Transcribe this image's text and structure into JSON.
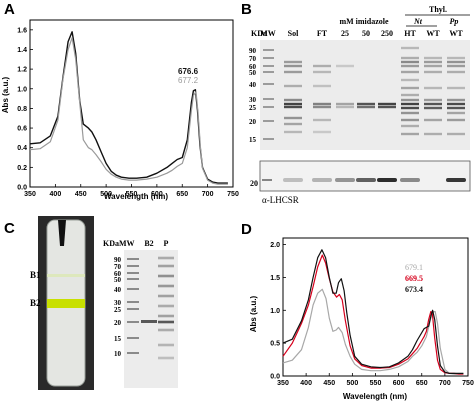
{
  "panels": {
    "A": {
      "label": "A",
      "ylabel": "Abs (a.u.)",
      "xlabel": "Wavelength (nm)",
      "xticks": [
        "350",
        "400",
        "450",
        "500",
        "550",
        "600",
        "650",
        "700",
        "750"
      ],
      "yticks": [
        "0.0",
        "0.2",
        "0.4",
        "0.6",
        "0.8",
        "1.0",
        "1.2",
        "1.4",
        "1.6"
      ],
      "legend": [
        {
          "text": "676.6",
          "color": "#111111"
        },
        {
          "text": "677.2",
          "color": "#9a9a9a"
        }
      ]
    },
    "B": {
      "label": "B",
      "kda": "KDa",
      "header_lanes": [
        "MW",
        "Sol",
        "FT",
        "25",
        "50",
        "250",
        "HT",
        "WT",
        "WT"
      ],
      "imidazole_label": "mM imidazole",
      "thyl_label": "Thyl.",
      "nt_label": "Nt",
      "pp_label": "Pp",
      "markers": [
        "90",
        "70",
        "60",
        "50",
        "40",
        "30",
        "25",
        "20",
        "15"
      ],
      "blot_marker": "20",
      "blot_label": "α-LHCSR"
    },
    "C": {
      "label": "C",
      "band_labels": [
        "B1",
        "B2"
      ],
      "kdamw": "KDaMW",
      "lanes": [
        "B2",
        "P"
      ],
      "markers": [
        "90",
        "70",
        "60",
        "50",
        "40",
        "30",
        "25",
        "20",
        "15",
        "10"
      ]
    },
    "D": {
      "label": "D",
      "ylabel": "Abs (a.u.)",
      "xlabel": "Wavelength (nm)",
      "xticks": [
        "350",
        "400",
        "450",
        "500",
        "550",
        "600",
        "650",
        "700",
        "750"
      ],
      "yticks": [
        "0.0",
        "0.5",
        "1.0",
        "1.5",
        "2.0"
      ],
      "legend": [
        {
          "text": "679.1",
          "color": "#a8a8a8"
        },
        {
          "text": "669.5",
          "color": "#d6001c"
        },
        {
          "text": "673.4",
          "color": "#111111"
        }
      ]
    }
  },
  "chart_data": [
    {
      "type": "line",
      "panel": "A",
      "xlabel": "Wavelength (nm)",
      "ylabel": "Abs (a.u.)",
      "xlim": [
        350,
        750
      ],
      "ylim": [
        0,
        1.7
      ],
      "series": [
        {
          "name": "676.6",
          "color": "#111111",
          "x": [
            350,
            370,
            390,
            405,
            415,
            425,
            433,
            440,
            448,
            455,
            465,
            472,
            480,
            490,
            500,
            510,
            520,
            530,
            545,
            560,
            580,
            600,
            620,
            630,
            640,
            650,
            660,
            668,
            672,
            676,
            680,
            685,
            690,
            700,
            710,
            720,
            730,
            740
          ],
          "y": [
            0.44,
            0.45,
            0.52,
            0.72,
            1.12,
            1.48,
            1.58,
            1.36,
            0.88,
            0.64,
            0.6,
            0.56,
            0.48,
            0.36,
            0.24,
            0.16,
            0.12,
            0.1,
            0.09,
            0.09,
            0.1,
            0.14,
            0.2,
            0.24,
            0.28,
            0.3,
            0.48,
            0.86,
            0.98,
            0.99,
            0.78,
            0.42,
            0.2,
            0.08,
            0.05,
            0.04,
            0.04,
            0.04
          ]
        },
        {
          "name": "677.2",
          "color": "#9a9a9a",
          "x": [
            350,
            370,
            390,
            405,
            415,
            425,
            433,
            440,
            448,
            455,
            465,
            472,
            480,
            490,
            500,
            510,
            520,
            530,
            545,
            560,
            580,
            600,
            620,
            630,
            640,
            650,
            660,
            668,
            672,
            677,
            681,
            686,
            690,
            700,
            710,
            720,
            730,
            740
          ],
          "y": [
            0.38,
            0.39,
            0.46,
            0.68,
            1.1,
            1.4,
            1.52,
            1.3,
            0.86,
            0.48,
            0.4,
            0.38,
            0.33,
            0.26,
            0.18,
            0.13,
            0.1,
            0.08,
            0.07,
            0.07,
            0.08,
            0.1,
            0.14,
            0.17,
            0.21,
            0.24,
            0.4,
            0.78,
            0.93,
            0.97,
            0.76,
            0.4,
            0.19,
            0.07,
            0.04,
            0.03,
            0.03,
            0.03
          ]
        }
      ]
    },
    {
      "type": "line",
      "panel": "D",
      "xlabel": "Wavelength (nm)",
      "ylabel": "Abs (a.u.)",
      "xlim": [
        350,
        750
      ],
      "ylim": [
        0,
        2.1
      ],
      "series": [
        {
          "name": "679.1",
          "color": "#a8a8a8",
          "x": [
            350,
            370,
            390,
            405,
            415,
            425,
            435,
            443,
            450,
            458,
            465,
            470,
            478,
            485,
            495,
            505,
            520,
            540,
            560,
            580,
            600,
            620,
            630,
            640,
            650,
            660,
            668,
            672,
            676,
            679,
            684,
            690,
            700,
            710,
            720,
            730,
            740
          ],
          "y": [
            0.2,
            0.24,
            0.4,
            0.74,
            1.08,
            1.26,
            1.32,
            1.18,
            0.88,
            0.68,
            0.7,
            0.74,
            0.66,
            0.48,
            0.3,
            0.18,
            0.1,
            0.08,
            0.08,
            0.1,
            0.14,
            0.22,
            0.3,
            0.36,
            0.46,
            0.6,
            0.84,
            0.94,
            0.98,
            0.98,
            0.8,
            0.42,
            0.1,
            0.04,
            0.03,
            0.03,
            0.03
          ]
        },
        {
          "name": "669.5",
          "color": "#d6001c",
          "x": [
            350,
            370,
            390,
            405,
            415,
            425,
            435,
            442,
            450,
            458,
            466,
            472,
            478,
            485,
            495,
            505,
            520,
            540,
            560,
            580,
            600,
            620,
            630,
            640,
            650,
            655,
            660,
            665,
            669.5,
            673,
            678,
            684,
            690,
            700,
            710,
            720,
            730,
            740
          ],
          "y": [
            0.3,
            0.5,
            0.8,
            1.08,
            1.36,
            1.66,
            1.84,
            1.72,
            1.48,
            1.28,
            1.2,
            1.24,
            1.16,
            0.84,
            0.46,
            0.26,
            0.16,
            0.12,
            0.12,
            0.13,
            0.18,
            0.26,
            0.34,
            0.42,
            0.54,
            0.6,
            0.68,
            0.86,
            0.98,
            0.94,
            0.58,
            0.24,
            0.1,
            0.05,
            0.04,
            0.04,
            0.03,
            0.03
          ]
        },
        {
          "name": "673.4",
          "color": "#111111",
          "x": [
            350,
            370,
            390,
            405,
            415,
            425,
            434,
            442,
            450,
            458,
            465,
            470,
            476,
            482,
            488,
            495,
            505,
            520,
            540,
            560,
            580,
            600,
            620,
            630,
            640,
            650,
            655,
            660,
            665,
            670,
            673.4,
            678,
            684,
            690,
            700,
            710,
            720,
            730,
            740
          ],
          "y": [
            0.5,
            0.56,
            0.84,
            1.16,
            1.5,
            1.8,
            1.92,
            1.8,
            1.5,
            1.26,
            1.26,
            1.42,
            1.48,
            1.3,
            0.96,
            0.62,
            0.3,
            0.18,
            0.14,
            0.13,
            0.14,
            0.2,
            0.3,
            0.4,
            0.54,
            0.66,
            0.72,
            0.74,
            0.76,
            0.92,
            1.0,
            0.86,
            0.46,
            0.16,
            0.06,
            0.04,
            0.04,
            0.04,
            0.04
          ]
        }
      ]
    }
  ]
}
